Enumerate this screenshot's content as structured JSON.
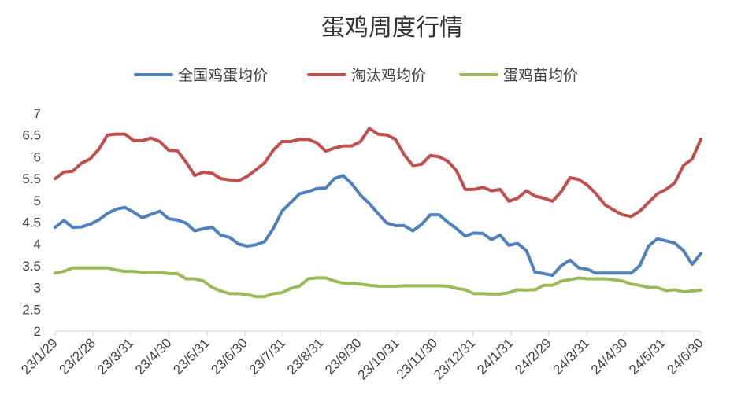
{
  "chart_data": {
    "type": "line",
    "title": "蛋鸡周度行情",
    "legend_position": "top",
    "grid": false,
    "ylim": [
      2,
      7
    ],
    "yticks": [
      "2",
      "2.5",
      "3",
      "3.5",
      "4",
      "4.5",
      "5",
      "5.5",
      "6",
      "6.5",
      "7"
    ],
    "xticks": [
      "23/1/29",
      "23/2/28",
      "23/3/31",
      "23/4/30",
      "23/5/31",
      "23/6/30",
      "23/7/31",
      "23/8/31",
      "23/9/30",
      "23/10/31",
      "23/11/30",
      "23/12/31",
      "24/1/31",
      "24/2/29",
      "24/3/31",
      "24/4/30",
      "24/5/31",
      "24/6/30"
    ],
    "x_count": 75,
    "series": [
      {
        "name": "全国鸡蛋均价",
        "color": "#4f81bd",
        "values": [
          4.38,
          4.54,
          4.38,
          4.39,
          4.45,
          4.55,
          4.7,
          4.8,
          4.84,
          4.73,
          4.6,
          4.68,
          4.75,
          4.58,
          4.55,
          4.48,
          4.3,
          4.35,
          4.38,
          4.2,
          4.15,
          4.0,
          3.95,
          3.98,
          4.05,
          4.35,
          4.75,
          4.95,
          5.15,
          5.2,
          5.27,
          5.28,
          5.5,
          5.57,
          5.38,
          5.12,
          4.93,
          4.7,
          4.48,
          4.42,
          4.42,
          4.3,
          4.45,
          4.67,
          4.67,
          4.5,
          4.35,
          4.18,
          4.25,
          4.24,
          4.1,
          4.2,
          3.97,
          4.01,
          3.85,
          3.35,
          3.32,
          3.28,
          3.5,
          3.63,
          3.45,
          3.42,
          3.33,
          3.33,
          3.33,
          3.33,
          3.33,
          3.5,
          3.95,
          4.12,
          4.07,
          4.02,
          3.85,
          3.53,
          3.78
        ]
      },
      {
        "name": "淘汰鸡均价",
        "color": "#c0504d",
        "values": [
          5.5,
          5.65,
          5.67,
          5.85,
          5.95,
          6.17,
          6.5,
          6.52,
          6.52,
          6.37,
          6.37,
          6.43,
          6.35,
          6.15,
          6.14,
          5.88,
          5.57,
          5.65,
          5.62,
          5.5,
          5.47,
          5.45,
          5.55,
          5.7,
          5.86,
          6.15,
          6.35,
          6.35,
          6.4,
          6.4,
          6.32,
          6.13,
          6.2,
          6.25,
          6.25,
          6.35,
          6.65,
          6.52,
          6.5,
          6.4,
          6.05,
          5.8,
          5.83,
          6.03,
          6.0,
          5.9,
          5.68,
          5.25,
          5.25,
          5.3,
          5.22,
          5.25,
          4.98,
          5.05,
          5.22,
          5.1,
          5.05,
          4.98,
          5.2,
          5.52,
          5.48,
          5.35,
          5.15,
          4.9,
          4.78,
          4.67,
          4.63,
          4.75,
          4.95,
          5.15,
          5.25,
          5.4,
          5.8,
          5.95,
          6.4
        ]
      },
      {
        "name": "蛋鸡苗均价",
        "color": "#9bbb59",
        "values": [
          3.33,
          3.37,
          3.45,
          3.45,
          3.45,
          3.45,
          3.45,
          3.4,
          3.37,
          3.37,
          3.35,
          3.35,
          3.35,
          3.32,
          3.32,
          3.2,
          3.2,
          3.15,
          3.0,
          2.92,
          2.86,
          2.86,
          2.84,
          2.79,
          2.79,
          2.86,
          2.88,
          2.98,
          3.03,
          3.2,
          3.22,
          3.22,
          3.15,
          3.1,
          3.1,
          3.08,
          3.05,
          3.03,
          3.03,
          3.03,
          3.04,
          3.04,
          3.04,
          3.04,
          3.04,
          3.03,
          2.98,
          2.95,
          2.86,
          2.86,
          2.85,
          2.85,
          2.88,
          2.95,
          2.94,
          2.95,
          3.05,
          3.05,
          3.15,
          3.18,
          3.22,
          3.2,
          3.2,
          3.2,
          3.18,
          3.15,
          3.08,
          3.05,
          3.0,
          3.0,
          2.93,
          2.95,
          2.9,
          2.92,
          2.94
        ]
      }
    ]
  }
}
